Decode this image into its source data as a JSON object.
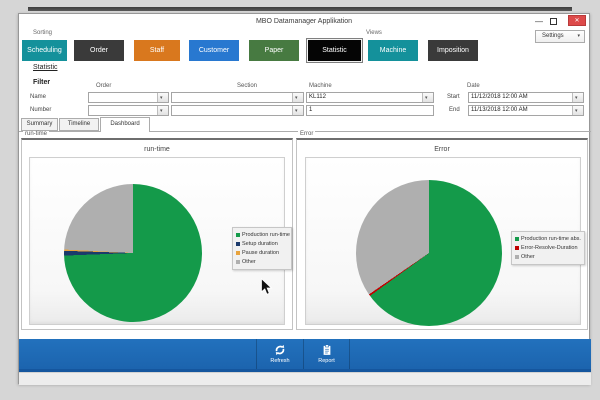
{
  "window": {
    "title": "MBO Datamanager Applikation",
    "minimize_glyph": "—",
    "close_glyph": "✕"
  },
  "toolbar": {
    "sorting_label": "Sorting",
    "views_label": "Views",
    "settings_label": "Settings",
    "buttons": [
      {
        "label": "Scheduling",
        "color": "#14919B"
      },
      {
        "label": "Order",
        "color": "#3A3A3A"
      },
      {
        "label": "Staff",
        "color": "#D9781E"
      },
      {
        "label": "Customer",
        "color": "#2878D0"
      },
      {
        "label": "Paper",
        "color": "#477A41"
      },
      {
        "label": "Statistic",
        "color": "#050505",
        "selected": true
      },
      {
        "label": "Machine",
        "color": "#14919B"
      },
      {
        "label": "Imposition",
        "color": "#3A3A3A"
      }
    ]
  },
  "breadcrumb": "Statistic",
  "filter": {
    "label": "Filter",
    "column_headers": {
      "order": "Order",
      "section": "Section",
      "machine": "Machine",
      "date": "Date"
    },
    "row_labels": {
      "name": "Name",
      "number": "Number"
    },
    "machine_value": "KL112",
    "machine_number": "1",
    "date": {
      "start_label": "Start",
      "start_value": "11/12/2018 12:00 AM",
      "end_label": "End",
      "end_value": "11/13/2018 12:00 AM"
    }
  },
  "tabs": [
    {
      "label": "Summary",
      "selected": false
    },
    {
      "label": "Timeline",
      "selected": false
    },
    {
      "label": "Dashboard",
      "selected": true
    }
  ],
  "chart_data": [
    {
      "type": "pie",
      "group_label": "run-time",
      "title": "run-time",
      "legend_position": "right",
      "slices": [
        {
          "label": "Production run-time",
          "value": 74.4,
          "color": "#149A4A"
        },
        {
          "label": "Setup duration",
          "value": 1.1,
          "color": "#1B3A6B"
        },
        {
          "label": "Pause duration",
          "value": 0.3,
          "color": "#E8A33D"
        },
        {
          "label": "Other",
          "value": 24.2,
          "color": "#AFAFAF"
        }
      ]
    },
    {
      "type": "pie",
      "group_label": "Error",
      "title": "Error",
      "legend_position": "right",
      "slices": [
        {
          "label": "Production run-time abs.",
          "value": 65.0,
          "color": "#149A4A"
        },
        {
          "label": "Error-Resolve-Duration",
          "value": 0.4,
          "color": "#C00000"
        },
        {
          "label": "Other",
          "value": 34.6,
          "color": "#AFAFAF"
        }
      ]
    }
  ],
  "ribbon": {
    "bar_color": "#1E6AB4",
    "refresh_label": "Refresh",
    "report_label": "Report"
  }
}
